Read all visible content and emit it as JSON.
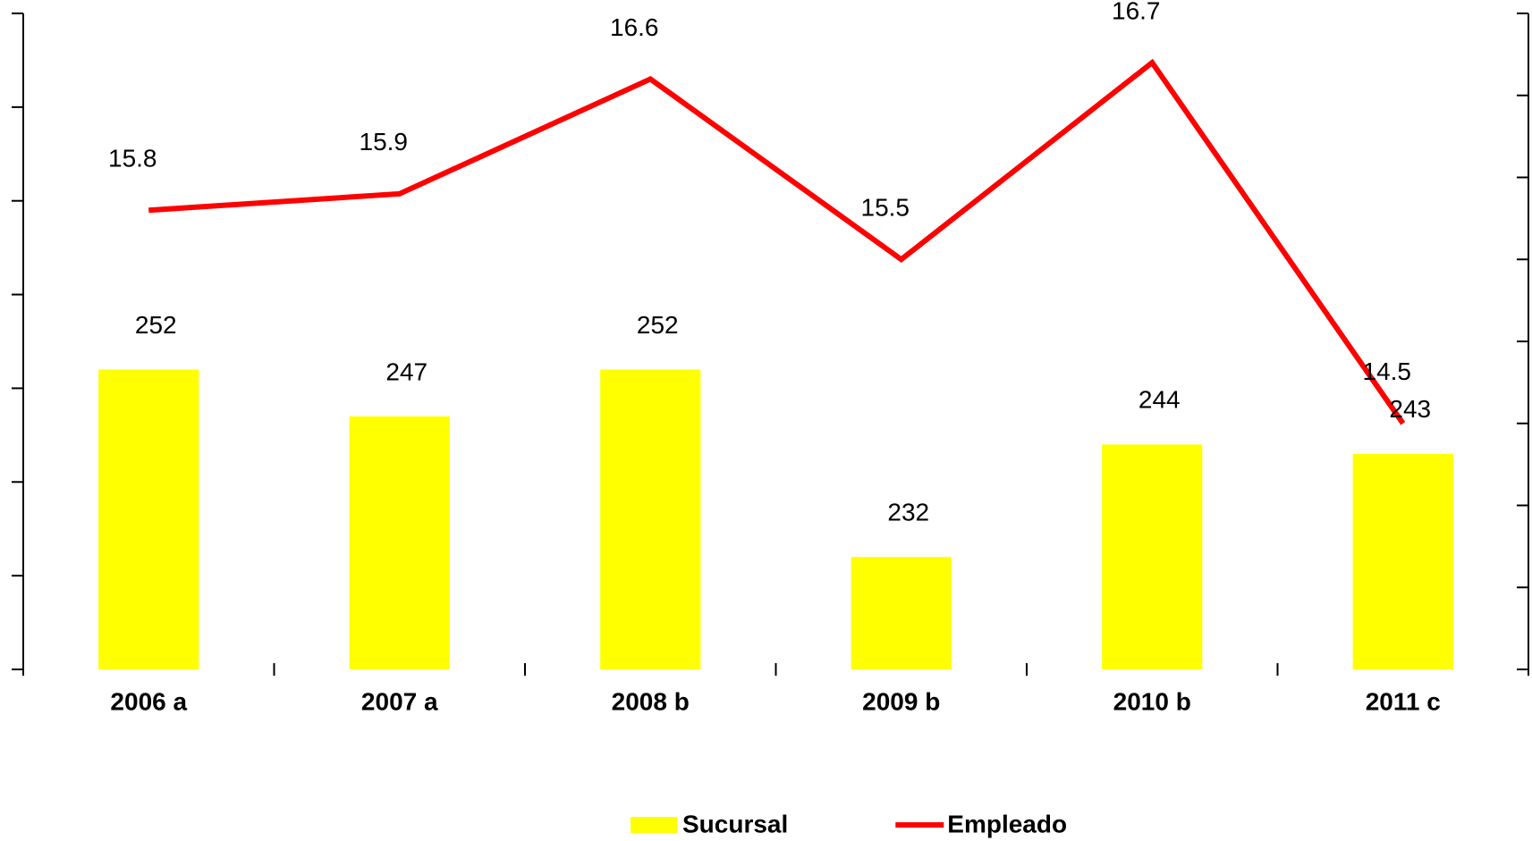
{
  "chart_data": {
    "type": "bar_line",
    "categories": [
      "2006 a",
      "2007 a",
      "2008 b",
      "2009 b",
      "2010 b",
      "2011 c"
    ],
    "series": [
      {
        "name": "Sucursal",
        "type": "bar",
        "color": "#ffff00",
        "values": [
          252,
          247,
          252,
          232,
          244,
          243
        ]
      },
      {
        "name": "Empleado",
        "type": "line",
        "color": "#ff0000",
        "axis": "y2",
        "values": [
          15.8,
          15.9,
          16.6,
          15.5,
          16.7,
          14.5
        ]
      }
    ],
    "ylim": [
      220,
      290
    ],
    "yticks": [
      220,
      230,
      240,
      250,
      260,
      270,
      280,
      290
    ],
    "y2lim": [
      13,
      17
    ],
    "y2ticks": [
      13,
      13.5,
      14,
      14.5,
      15,
      15.5,
      16,
      16.5,
      17
    ],
    "legend": "bottom"
  }
}
